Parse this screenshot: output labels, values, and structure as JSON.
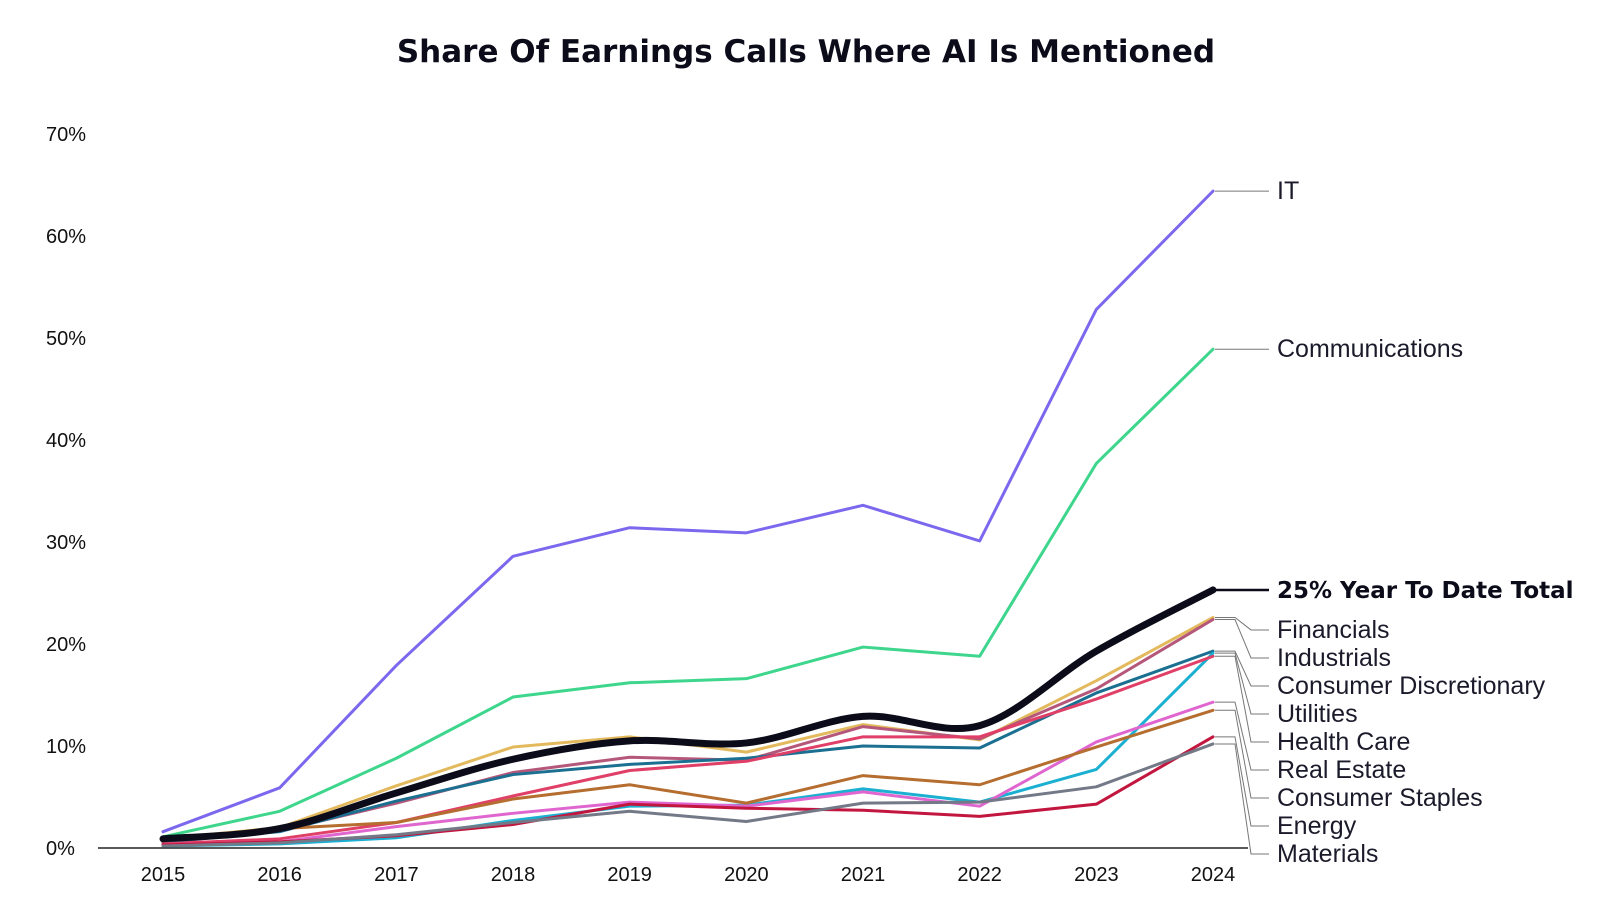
{
  "chart_data": {
    "type": "line",
    "title": "Share Of Earnings Calls Where AI Is Mentioned",
    "xlabel": "",
    "ylabel": "",
    "x": [
      "2015",
      "2016",
      "2017",
      "2018",
      "2019",
      "2020",
      "2021",
      "2022",
      "2023",
      "2024"
    ],
    "ylim": [
      0,
      70
    ],
    "yticks": [
      "0%",
      "10%",
      "20%",
      "30%",
      "40%",
      "50%",
      "60%",
      "70%"
    ],
    "grid": false,
    "legend": "direct labels at right end of each line",
    "series": [
      {
        "name": "IT",
        "color": "#7b68ee",
        "width": 3,
        "values": [
          1.6,
          5.9,
          17.9,
          28.6,
          31.4,
          30.9,
          33.6,
          30.1,
          52.8,
          64.4
        ]
      },
      {
        "name": "Communications",
        "color": "#3dd68c",
        "width": 3,
        "values": [
          1.1,
          3.6,
          8.8,
          14.8,
          16.2,
          16.6,
          19.7,
          18.8,
          37.7,
          48.9
        ]
      },
      {
        "name": "Financials",
        "color": "#e3b95e",
        "width": 3,
        "values": [
          0.9,
          2.0,
          6.1,
          9.9,
          10.9,
          9.4,
          12.1,
          10.6,
          16.4,
          22.6
        ]
      },
      {
        "name": "Industrials",
        "color": "#b5577a",
        "width": 3,
        "values": [
          0.5,
          1.7,
          4.4,
          7.4,
          8.9,
          8.6,
          11.9,
          10.7,
          15.6,
          22.4
        ]
      },
      {
        "name": "Consumer Discretionary",
        "color": "#1b6f91",
        "width": 3,
        "values": [
          0.6,
          1.6,
          4.6,
          7.2,
          8.2,
          8.8,
          10.0,
          9.8,
          15.2,
          19.3
        ]
      },
      {
        "name": "Utilities",
        "color": "#1bb0d1",
        "width": 3,
        "values": [
          0.2,
          0.4,
          1.0,
          2.7,
          4.1,
          4.2,
          5.8,
          4.5,
          7.7,
          19.1
        ]
      },
      {
        "name": "Health Care",
        "color": "#e03f67",
        "width": 3,
        "values": [
          0.4,
          0.9,
          2.5,
          5.1,
          7.6,
          8.5,
          10.9,
          10.9,
          14.6,
          18.8
        ]
      },
      {
        "name": "Real Estate",
        "color": "#e066cf",
        "width": 3,
        "values": [
          0.3,
          0.6,
          2.1,
          3.4,
          4.5,
          4.1,
          5.5,
          4.1,
          10.4,
          14.3
        ]
      },
      {
        "name": "Consumer Staples",
        "color": "#b56e2f",
        "width": 3,
        "values": [
          0.7,
          1.9,
          2.5,
          4.8,
          6.2,
          4.4,
          7.1,
          6.2,
          9.9,
          13.5
        ]
      },
      {
        "name": "Energy",
        "color": "#c2163f",
        "width": 3,
        "values": [
          0.3,
          0.6,
          1.2,
          2.3,
          4.3,
          3.9,
          3.7,
          3.1,
          4.3,
          10.9
        ]
      },
      {
        "name": "Materials",
        "color": "#737987",
        "width": 3,
        "values": [
          0.2,
          0.5,
          1.3,
          2.5,
          3.6,
          2.6,
          4.4,
          4.5,
          6.0,
          10.2
        ]
      },
      {
        "name": "25% Year To Date Total",
        "color": "#0b0b1a",
        "width": 7,
        "bold": true,
        "values": [
          0.9,
          1.9,
          5.4,
          8.7,
          10.5,
          10.3,
          12.9,
          12.0,
          19.3,
          25.3
        ]
      }
    ]
  }
}
